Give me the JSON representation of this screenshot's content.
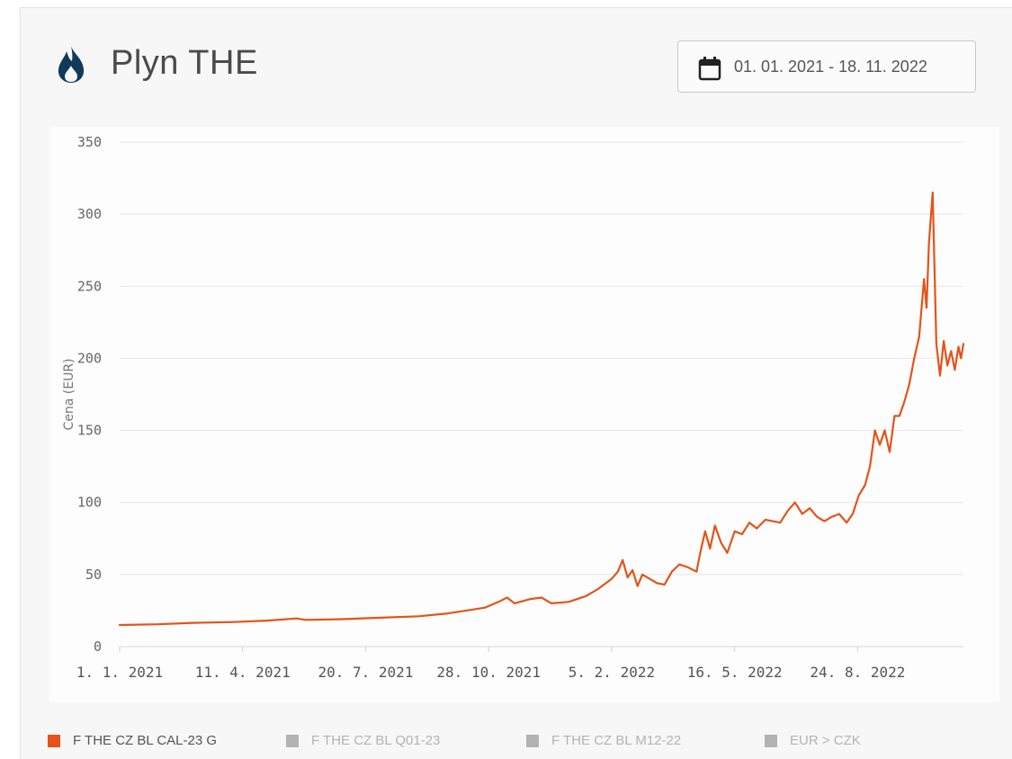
{
  "header": {
    "title": "Plyn THE",
    "icon": "flame-icon",
    "date_range": "01. 01. 2021 - 18. 11. 2022",
    "date_icon": "calendar-icon"
  },
  "colors": {
    "series": "#e5531a",
    "inactive": "#b3b3b3",
    "title_icon": "#0f3a5c",
    "grid": "#e6e6e6"
  },
  "legend": [
    {
      "label": "F THE CZ BL CAL-23 G",
      "active": true
    },
    {
      "label": "F THE CZ BL Q01-23",
      "active": false
    },
    {
      "label": "F THE CZ BL M12-22",
      "active": false
    },
    {
      "label": "EUR > CZK",
      "active": false
    }
  ],
  "chart_data": {
    "type": "line",
    "title": "",
    "xlabel": "",
    "ylabel": "Cena (EUR)",
    "ylim": [
      0,
      350
    ],
    "yticks": [
      0,
      50,
      100,
      150,
      200,
      250,
      300,
      350
    ],
    "xlim": [
      "2021-01-01",
      "2022-11-18"
    ],
    "xticks": [
      {
        "date": "2021-01-01",
        "label": "1. 1. 2021"
      },
      {
        "date": "2021-04-11",
        "label": "11. 4. 2021"
      },
      {
        "date": "2021-07-20",
        "label": "20. 7. 2021"
      },
      {
        "date": "2021-10-28",
        "label": "28. 10. 2021"
      },
      {
        "date": "2022-02-05",
        "label": "5. 2. 2022"
      },
      {
        "date": "2022-05-16",
        "label": "16. 5. 2022"
      },
      {
        "date": "2022-08-24",
        "label": "24. 8. 2022"
      }
    ],
    "grid": true,
    "legend_position": "bottom",
    "series": [
      {
        "name": "F THE CZ BL CAL-23 G",
        "points": [
          [
            "2021-01-01",
            15
          ],
          [
            "2021-02-01",
            15.5
          ],
          [
            "2021-03-01",
            16.5
          ],
          [
            "2021-04-01",
            17
          ],
          [
            "2021-05-01",
            18
          ],
          [
            "2021-05-25",
            19.5
          ],
          [
            "2021-06-01",
            18.5
          ],
          [
            "2021-07-01",
            19
          ],
          [
            "2021-08-01",
            20
          ],
          [
            "2021-09-01",
            21
          ],
          [
            "2021-09-25",
            23
          ],
          [
            "2021-10-10",
            25
          ],
          [
            "2021-10-25",
            27
          ],
          [
            "2021-11-05",
            31
          ],
          [
            "2021-11-12",
            34
          ],
          [
            "2021-11-18",
            30
          ],
          [
            "2021-12-01",
            33
          ],
          [
            "2021-12-10",
            34
          ],
          [
            "2021-12-18",
            30
          ],
          [
            "2022-01-01",
            31
          ],
          [
            "2022-01-15",
            35
          ],
          [
            "2022-01-25",
            40
          ],
          [
            "2022-02-05",
            47
          ],
          [
            "2022-02-10",
            52
          ],
          [
            "2022-02-14",
            60
          ],
          [
            "2022-02-18",
            48
          ],
          [
            "2022-02-22",
            53
          ],
          [
            "2022-02-26",
            42
          ],
          [
            "2022-03-02",
            50
          ],
          [
            "2022-03-08",
            47
          ],
          [
            "2022-03-14",
            44
          ],
          [
            "2022-03-20",
            43
          ],
          [
            "2022-03-26",
            52
          ],
          [
            "2022-04-01",
            57
          ],
          [
            "2022-04-08",
            55
          ],
          [
            "2022-04-15",
            52
          ],
          [
            "2022-04-18",
            65
          ],
          [
            "2022-04-22",
            80
          ],
          [
            "2022-04-26",
            68
          ],
          [
            "2022-04-30",
            84
          ],
          [
            "2022-05-05",
            72
          ],
          [
            "2022-05-10",
            65
          ],
          [
            "2022-05-16",
            80
          ],
          [
            "2022-05-22",
            78
          ],
          [
            "2022-05-28",
            86
          ],
          [
            "2022-06-03",
            82
          ],
          [
            "2022-06-10",
            88
          ],
          [
            "2022-06-16",
            87
          ],
          [
            "2022-06-22",
            86
          ],
          [
            "2022-06-28",
            94
          ],
          [
            "2022-07-04",
            100
          ],
          [
            "2022-07-10",
            92
          ],
          [
            "2022-07-16",
            96
          ],
          [
            "2022-07-22",
            90
          ],
          [
            "2022-07-28",
            87
          ],
          [
            "2022-08-03",
            90
          ],
          [
            "2022-08-09",
            92
          ],
          [
            "2022-08-15",
            86
          ],
          [
            "2022-08-20",
            92
          ],
          [
            "2022-08-25",
            105
          ],
          [
            "2022-08-30",
            112
          ],
          [
            "2022-09-03",
            125
          ],
          [
            "2022-09-07",
            150
          ],
          [
            "2022-09-11",
            140
          ],
          [
            "2022-09-15",
            150
          ],
          [
            "2022-09-19",
            135
          ],
          [
            "2022-09-23",
            160
          ],
          [
            "2022-09-27",
            160
          ],
          [
            "2022-10-01",
            170
          ],
          [
            "2022-10-05",
            182
          ],
          [
            "2022-10-09",
            200
          ],
          [
            "2022-10-13",
            215
          ],
          [
            "2022-10-17",
            255
          ],
          [
            "2022-10-19",
            235
          ],
          [
            "2022-10-21",
            280
          ],
          [
            "2022-10-24",
            315
          ],
          [
            "2022-10-27",
            210
          ],
          [
            "2022-10-30",
            188
          ],
          [
            "2022-11-02",
            212
          ],
          [
            "2022-11-05",
            195
          ],
          [
            "2022-11-08",
            205
          ],
          [
            "2022-11-11",
            192
          ],
          [
            "2022-11-14",
            208
          ],
          [
            "2022-11-16",
            200
          ],
          [
            "2022-11-18",
            210
          ]
        ]
      }
    ]
  }
}
